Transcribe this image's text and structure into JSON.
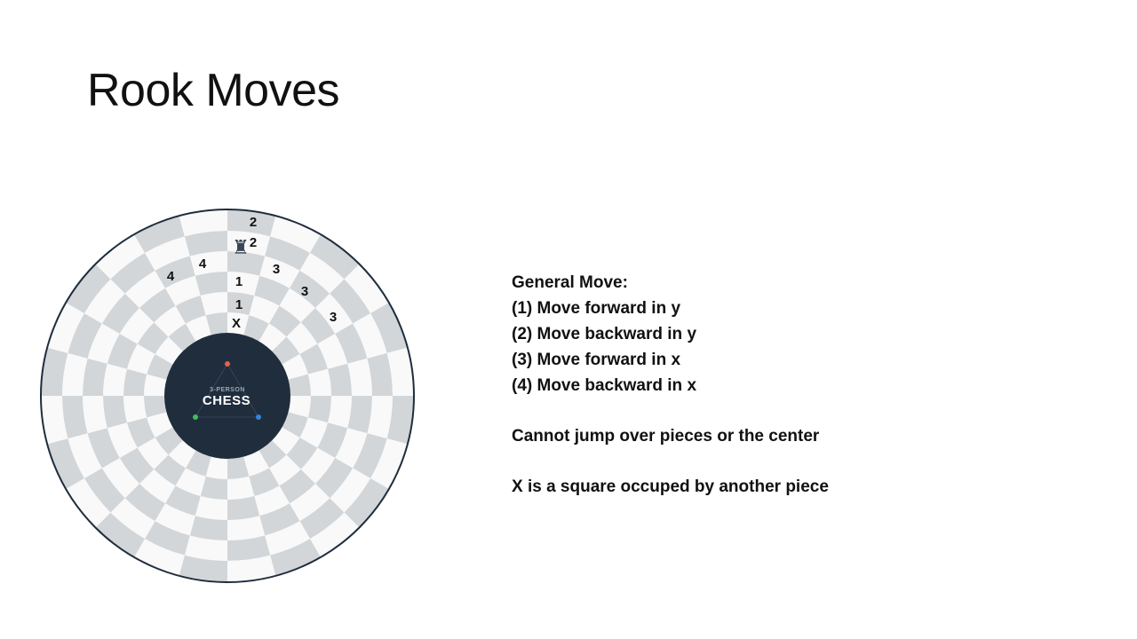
{
  "slide": {
    "title": "Rook Moves"
  },
  "board": {
    "logo": {
      "top_text": "3-PERSON",
      "main_text": "CHESS"
    },
    "player_dots": [
      {
        "color": "#e8604c"
      },
      {
        "color": "#3fbf5a"
      },
      {
        "color": "#2f88d6"
      }
    ],
    "piece": {
      "name": "rook",
      "glyph": "♜"
    },
    "labels": {
      "x_marker": "X",
      "forward_y": [
        "1",
        "1"
      ],
      "backward_y": [
        "2",
        "2"
      ],
      "forward_x": [
        "3",
        "3",
        "3"
      ],
      "backward_x": [
        "4",
        "4"
      ]
    },
    "colors": {
      "light": "#f9f9f9",
      "dark": "#d2d6d8",
      "center": "#1f2d3d",
      "rim": "#1f2d3d"
    }
  },
  "rules": {
    "heading": "General Move:",
    "moves": [
      "(1) Move forward in y",
      "(2) Move backward in y",
      "(3) Move forward in x",
      "(4) Move backward in x"
    ],
    "note_jump": "Cannot jump over pieces or the center",
    "note_x": "X is a square occuped by another piece"
  }
}
